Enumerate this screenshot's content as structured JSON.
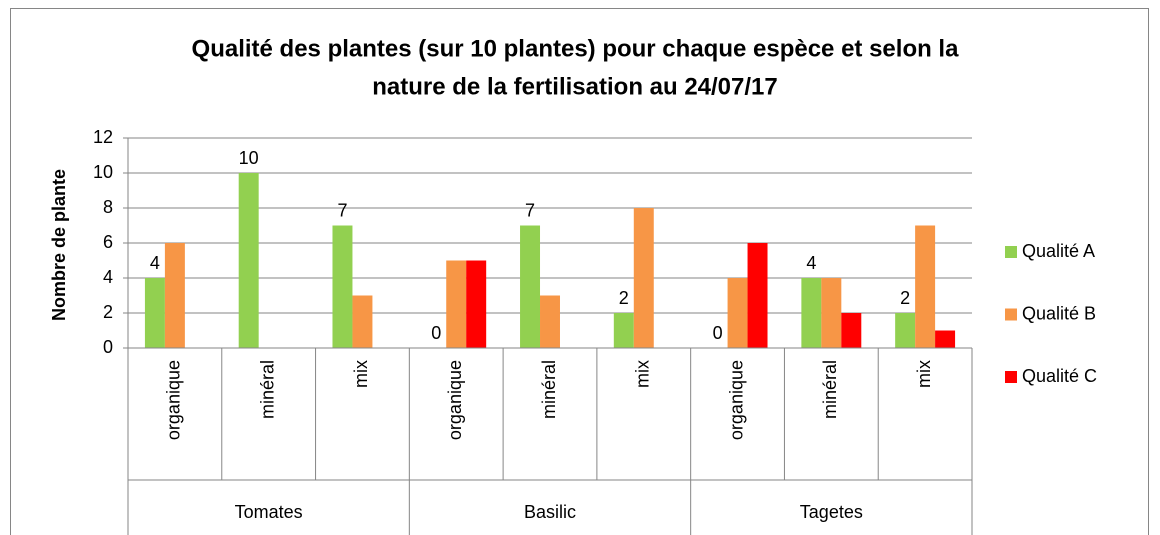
{
  "chart_data": {
    "type": "bar",
    "title": [
      "Qualité des plantes (sur 10 plantes) pour chaque espèce et selon la",
      "nature de la fertilisation au 24/07/17"
    ],
    "y_label": "Nombre de plante",
    "categories": [
      "organique",
      "minéral",
      "mix",
      "organique",
      "minéral",
      "mix",
      "organique",
      "minéral",
      "mix"
    ],
    "groups": [
      {
        "name": "Tomates",
        "size": 3
      },
      {
        "name": "Basilic",
        "size": 3
      },
      {
        "name": "Tagetes",
        "size": 3
      }
    ],
    "series": [
      {
        "name": "Qualité A",
        "color": "#92d050",
        "values": [
          4,
          10,
          7,
          0,
          7,
          2,
          0,
          4,
          2
        ],
        "data_labels": true
      },
      {
        "name": "Qualité B",
        "color": "#f79646",
        "values": [
          6,
          0,
          3,
          5,
          3,
          8,
          4,
          4,
          7
        ],
        "data_labels": false
      },
      {
        "name": "Qualité C",
        "color": "#ff0000",
        "values": [
          0,
          0,
          0,
          5,
          0,
          0,
          6,
          2,
          1
        ],
        "data_labels": false
      }
    ],
    "ylim": [
      0,
      12
    ],
    "yticks": [
      0,
      2,
      4,
      6,
      8,
      10,
      12
    ],
    "grid": true,
    "legend": "right"
  }
}
